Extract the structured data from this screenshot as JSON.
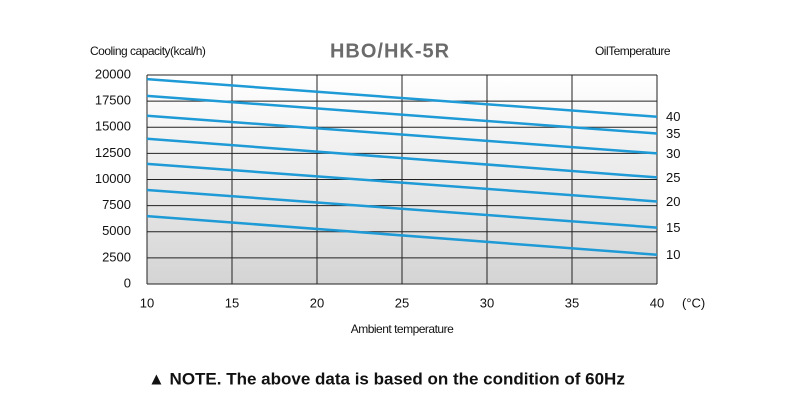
{
  "chart_data": {
    "type": "line",
    "title": "HBO/HK-5R",
    "y_label": "Cooling capacity(kcal/h)",
    "legend_title": "OilTemperature",
    "x_label": "Ambient temperature",
    "x_unit": "(°C)",
    "note": "▲ NOTE. The above data is based on the condition of 60Hz",
    "x": [
      10,
      40
    ],
    "series": [
      {
        "name": "40",
        "color": "#1e9ad6",
        "values": [
          19600,
          16000
        ]
      },
      {
        "name": "35",
        "color": "#1e9ad6",
        "values": [
          18000,
          14400
        ]
      },
      {
        "name": "30",
        "color": "#1e9ad6",
        "values": [
          16100,
          12500
        ]
      },
      {
        "name": "25",
        "color": "#1e9ad6",
        "values": [
          13900,
          10200
        ]
      },
      {
        "name": "20",
        "color": "#1e9ad6",
        "values": [
          11500,
          7900
        ]
      },
      {
        "name": "15",
        "color": "#1e9ad6",
        "values": [
          9000,
          5400
        ]
      },
      {
        "name": "10",
        "color": "#1e9ad6",
        "values": [
          6500,
          2800
        ]
      }
    ],
    "xlim": [
      10,
      40
    ],
    "xticks": [
      10,
      15,
      20,
      25,
      30,
      35,
      40
    ],
    "ylim": [
      0,
      20000
    ],
    "yticks": [
      0,
      2500,
      5000,
      7500,
      10000,
      12500,
      15000,
      17500,
      20000
    ],
    "grid": true
  }
}
